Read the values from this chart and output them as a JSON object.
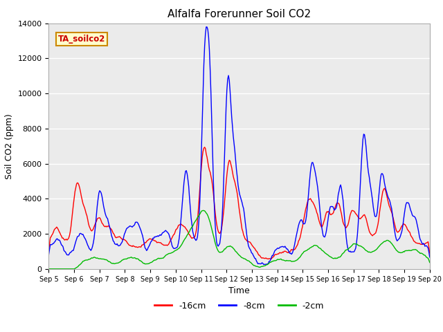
{
  "title": "Alfalfa Forerunner Soil CO2",
  "xlabel": "Time",
  "ylabel": "Soil CO2 (ppm)",
  "annotation": "TA_soilco2",
  "ylim": [
    0,
    14000
  ],
  "yticks": [
    0,
    2000,
    4000,
    6000,
    8000,
    10000,
    12000,
    14000
  ],
  "xtick_labels": [
    "Sep 5",
    "Sep 6",
    "Sep 7",
    "Sep 8",
    "Sep 9",
    "Sep 10",
    "Sep 11",
    "Sep 12",
    "Sep 13",
    "Sep 14",
    "Sep 15",
    "Sep 16",
    "Sep 17",
    "Sep 18",
    "Sep 19",
    "Sep 20"
  ],
  "n_points": 480,
  "colors": {
    "red": "#ff0000",
    "blue": "#0000ff",
    "green": "#00bb00",
    "bg": "#ebebeb",
    "annotation_bg": "#ffffcc",
    "annotation_border": "#cc8800"
  },
  "legend_labels": [
    "-16cm",
    "-8cm",
    "-2cm"
  ],
  "line_width": 1.0
}
